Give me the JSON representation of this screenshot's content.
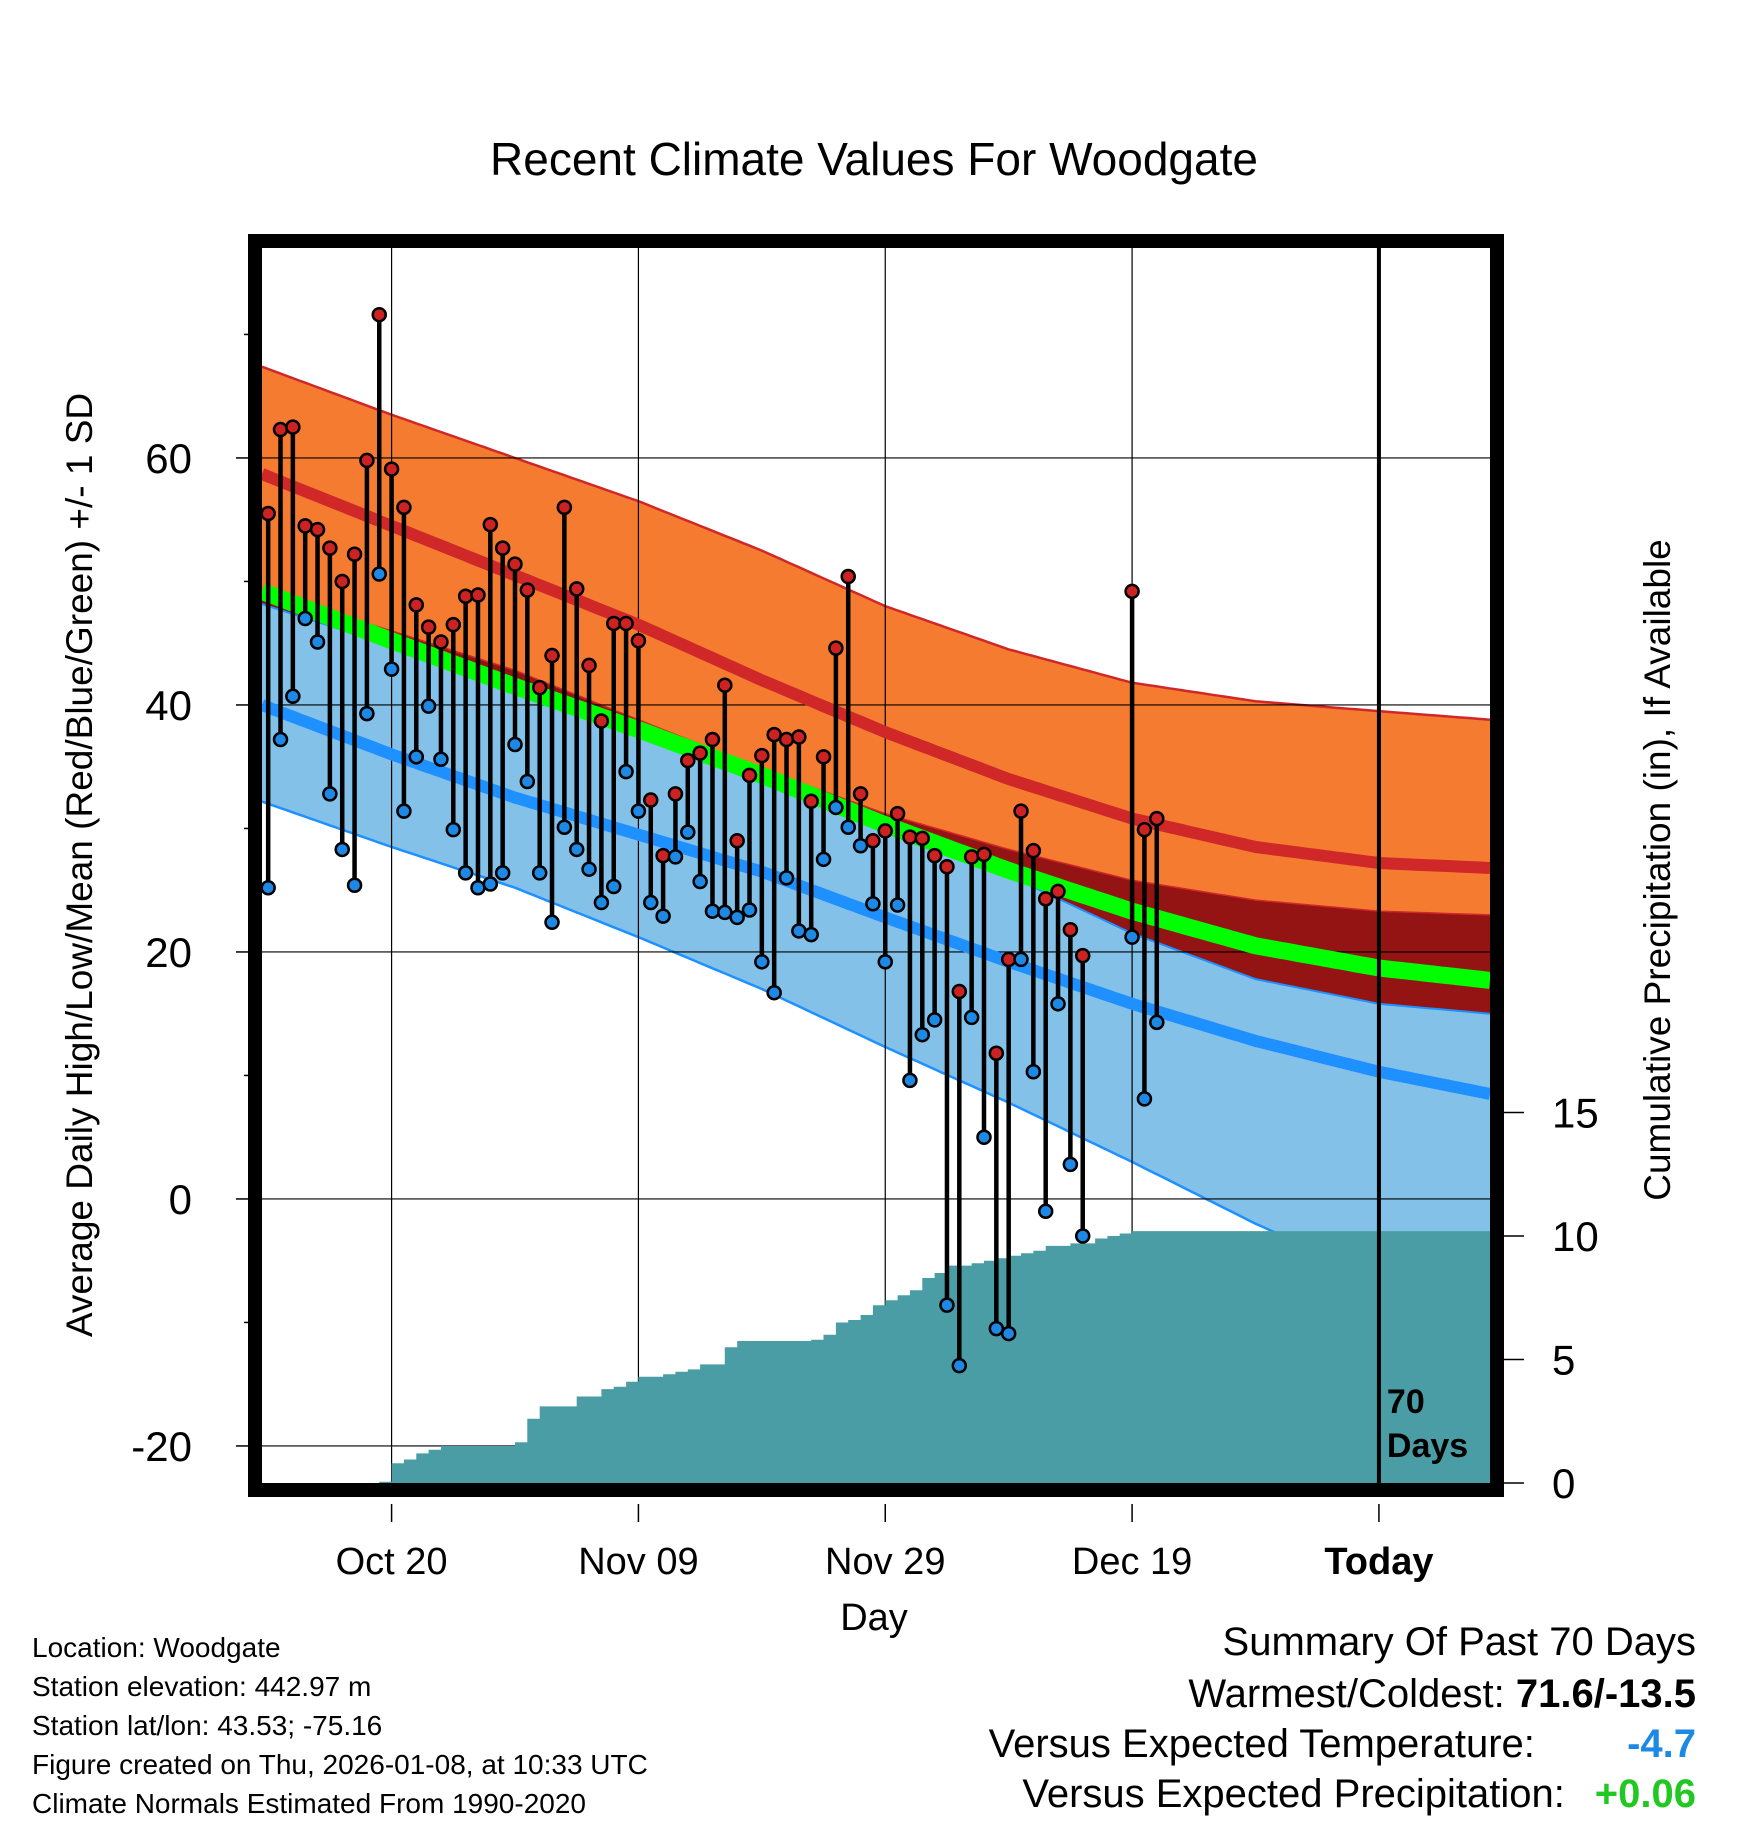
{
  "chart_data": {
    "type": "line",
    "title": "Recent Climate Values For Woodgate",
    "xlabel": "Day",
    "ylabel": "Average Daily High/Low/Mean (Red/Blue/Green) +/- 1 SD",
    "y2label": "Cumulative Precipitation (in), If Available",
    "xlim": [
      -0.5,
      99
    ],
    "ylim": [
      -23,
      77
    ],
    "y2lim": [
      0,
      50
    ],
    "x_tick_labels": [
      {
        "x": 10,
        "label": "Oct 20"
      },
      {
        "x": 30,
        "label": "Nov 09"
      },
      {
        "x": 50,
        "label": "Nov 29"
      },
      {
        "x": 70,
        "label": "Dec 19"
      },
      {
        "x": 90,
        "label": "Today"
      }
    ],
    "y_ticks": [
      -20,
      0,
      20,
      40,
      60
    ],
    "y2_ticks": [
      0,
      5,
      10,
      15
    ],
    "today_line_x": 90,
    "today_annotation": [
      "70",
      "Days"
    ],
    "colors": {
      "high_band": "#f47b30",
      "high_mean": "#d02828",
      "low_band": "#83c1e8",
      "low_mean": "#1e90ff",
      "mean_line": "#00ff00",
      "overlap": "#941414",
      "precip": "#4a9da4",
      "high_marker": "#cc2222",
      "low_marker": "#1e88e5",
      "vs_temp": "#1e88e5",
      "vs_precip": "#22c822"
    },
    "normal_high": {
      "x": [
        0,
        10,
        20,
        30,
        40,
        50,
        60,
        70,
        80,
        90,
        99
      ],
      "mean": [
        58.5,
        54.5,
        50.5,
        46.5,
        42.0,
        37.8,
        34.0,
        30.8,
        28.5,
        27.2,
        26.8
      ],
      "upper": [
        67.2,
        63.5,
        60.0,
        56.5,
        52.5,
        48.0,
        44.5,
        41.8,
        40.3,
        39.5,
        38.8
      ],
      "lower": [
        49.0,
        46.0,
        42.8,
        38.8,
        34.8,
        31.2,
        28.3,
        25.8,
        24.2,
        23.3,
        23.0
      ]
    },
    "normal_low": {
      "x": [
        0,
        10,
        20,
        30,
        40,
        50,
        60,
        70,
        80,
        90,
        99
      ],
      "mean": [
        39.8,
        36.0,
        32.5,
        29.5,
        26.5,
        22.8,
        19.2,
        15.8,
        12.8,
        10.3,
        8.5
      ],
      "upper": [
        48.0,
        44.8,
        41.0,
        38.0,
        34.6,
        30.5,
        26.2,
        21.5,
        17.8,
        15.8,
        15.0
      ],
      "lower": [
        32.0,
        28.5,
        25.2,
        21.2,
        17.0,
        12.3,
        7.8,
        3.0,
        -2.0,
        -6.5,
        -9.0
      ]
    },
    "normal_mean": {
      "x": [
        0,
        10,
        20,
        30,
        40,
        50,
        60,
        70,
        80,
        90,
        99
      ],
      "values": [
        49.0,
        45.2,
        41.5,
        38.0,
        34.3,
        30.3,
        26.6,
        23.3,
        20.5,
        18.7,
        17.7
      ]
    },
    "observed": {
      "day": [
        0,
        1,
        2,
        3,
        4,
        5,
        6,
        7,
        8,
        9,
        10,
        11,
        12,
        13,
        14,
        15,
        16,
        17,
        18,
        19,
        20,
        21,
        22,
        23,
        24,
        25,
        26,
        27,
        28,
        29,
        30,
        31,
        32,
        33,
        34,
        35,
        36,
        37,
        38,
        39,
        40,
        41,
        42,
        43,
        44,
        45,
        46,
        47,
        48,
        49,
        50,
        51,
        52,
        53,
        54,
        55,
        56,
        57,
        58,
        59,
        60,
        61,
        62,
        63,
        64,
        65,
        66,
        67,
        68,
        69,
        70,
        71,
        72
      ],
      "high": [
        55.5,
        62.3,
        62.5,
        54.5,
        54.2,
        52.7,
        50.0,
        52.2,
        59.8,
        71.6,
        59.1,
        56.0,
        48.1,
        46.3,
        45.1,
        46.5,
        48.8,
        48.9,
        54.6,
        52.7,
        51.4,
        49.3,
        41.4,
        44.0,
        56.0,
        49.4,
        43.2,
        38.7,
        46.6,
        46.6,
        45.2,
        32.3,
        27.8,
        32.8,
        35.5,
        36.1,
        37.2,
        41.6,
        29.0,
        34.3,
        35.9,
        37.6,
        37.2,
        37.4,
        32.2,
        35.8,
        44.6,
        50.4,
        32.8,
        29.0,
        29.8,
        31.2,
        29.3,
        29.2,
        27.8,
        26.9,
        16.8,
        27.7,
        27.9,
        11.8,
        19.4,
        31.4,
        28.2,
        24.3,
        24.9,
        21.8,
        19.7,
        null,
        null,
        null,
        49.2,
        29.9,
        30.8
      ],
      "low": [
        25.2,
        37.2,
        40.7,
        47.0,
        45.1,
        32.8,
        28.3,
        25.4,
        39.3,
        50.6,
        42.9,
        31.4,
        35.8,
        39.9,
        35.6,
        29.9,
        26.4,
        25.2,
        25.5,
        26.4,
        36.8,
        33.8,
        26.4,
        22.4,
        30.1,
        28.3,
        26.7,
        24.0,
        25.3,
        34.6,
        31.4,
        24.0,
        22.9,
        27.7,
        29.7,
        25.7,
        23.3,
        23.2,
        22.8,
        23.4,
        19.2,
        16.7,
        26.0,
        21.7,
        21.4,
        27.5,
        31.7,
        30.1,
        28.6,
        23.9,
        19.2,
        23.8,
        9.6,
        13.3,
        14.5,
        -8.6,
        -13.5,
        14.7,
        5.0,
        -10.5,
        -10.9,
        19.4,
        10.3,
        -1.0,
        15.8,
        2.8,
        -3.0,
        null,
        null,
        null,
        21.2,
        8.1,
        14.3
      ]
    },
    "precip_cumulative": {
      "day": [
        0,
        8,
        9,
        10,
        11,
        12,
        13,
        14,
        15,
        16,
        17,
        18,
        19,
        20,
        21,
        22,
        23,
        24,
        25,
        26,
        27,
        28,
        29,
        30,
        31,
        32,
        33,
        34,
        35,
        36,
        37,
        38,
        39,
        40,
        41,
        42,
        43,
        44,
        45,
        46,
        47,
        48,
        49,
        50,
        51,
        52,
        53,
        54,
        55,
        56,
        57,
        58,
        59,
        60,
        61,
        62,
        63,
        64,
        65,
        66,
        67,
        68,
        69,
        70,
        90,
        99
      ],
      "values": [
        0,
        0,
        0.05,
        0.8,
        0.95,
        1.2,
        1.35,
        1.5,
        1.5,
        1.5,
        1.5,
        1.5,
        1.5,
        1.65,
        2.6,
        3.1,
        3.1,
        3.1,
        3.5,
        3.5,
        3.8,
        3.9,
        4.1,
        4.3,
        4.3,
        4.4,
        4.5,
        4.6,
        4.8,
        4.8,
        5.5,
        5.75,
        5.75,
        5.75,
        5.75,
        5.75,
        5.75,
        5.8,
        6.0,
        6.5,
        6.6,
        6.8,
        7.2,
        7.4,
        7.6,
        7.8,
        8.3,
        8.5,
        8.8,
        8.8,
        8.9,
        9.0,
        9.1,
        9.2,
        9.3,
        9.4,
        9.6,
        9.6,
        9.7,
        9.7,
        9.9,
        10.0,
        10.1,
        10.2,
        10.2,
        10.2
      ]
    }
  },
  "info": {
    "location": "Location: Woodgate",
    "elevation": "Station elevation: 442.97 m",
    "latlon": "Station lat/lon: 43.53; -75.16",
    "created": "Figure created on Thu, 2026-01-08, at 10:33 UTC",
    "normals": "Climate Normals Estimated From 1990-2020"
  },
  "summary": {
    "title": "Summary Of Past 70 Days",
    "warm_cold_label": "Warmest/Coldest:",
    "warm_cold_value": "71.6/-13.5",
    "vs_temp_label": "Versus Expected Temperature:",
    "vs_temp_value": "-4.7",
    "vs_precip_label": "Versus Expected Precipitation:",
    "vs_precip_value": "+0.06"
  }
}
